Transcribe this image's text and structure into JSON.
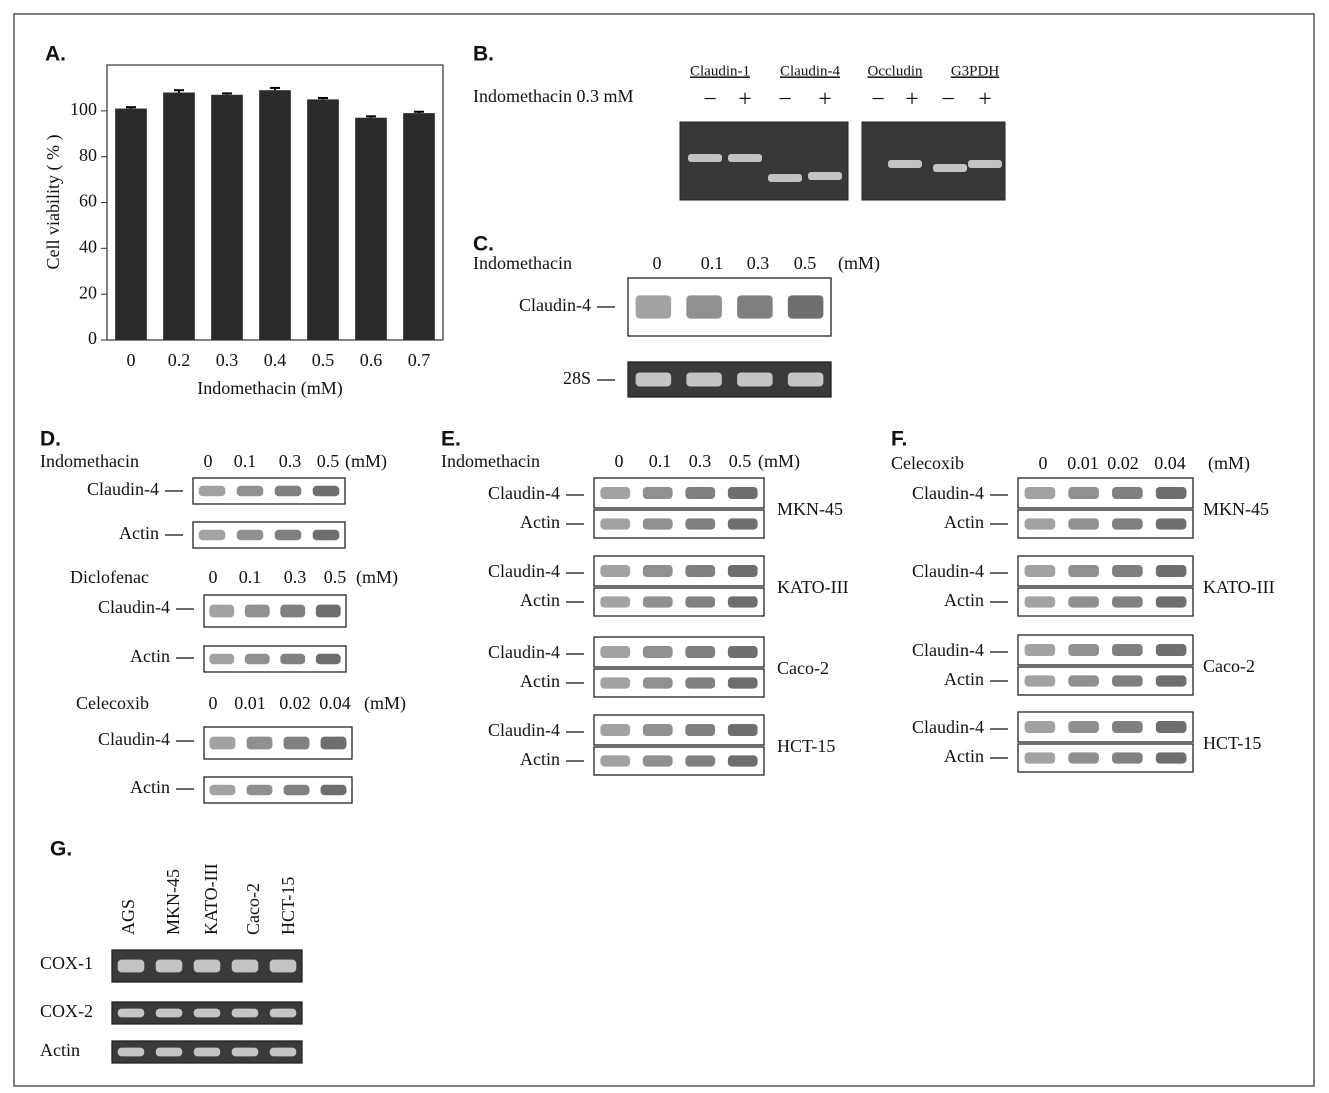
{
  "chart_data": {
    "type": "bar",
    "title": "A.",
    "x_label": "Indomethacin  (mM)",
    "y_label": "Cell viability ( % )",
    "categories": [
      "0",
      "0.2",
      "0.3",
      "0.4",
      "0.5",
      "0.6",
      "0.7"
    ],
    "values": [
      101,
      108,
      107,
      109,
      105,
      97,
      99
    ],
    "errors": [
      0.6,
      1,
      0.6,
      1,
      0.6,
      0.6,
      0.6
    ],
    "color": "#2b2b2b",
    "ylim": [
      0,
      120
    ],
    "yticks": [
      0,
      20,
      40,
      60,
      80,
      100
    ]
  },
  "panel_b": {
    "label": "B.",
    "treatment": "Indomethacin  0.3 mM",
    "genes": [
      "Claudin-1",
      "Claudin-4",
      "Occludin",
      "G3PDH"
    ],
    "signs": [
      "−",
      "+"
    ]
  },
  "panel_c": {
    "label": "C.",
    "treatment": "Indomethacin",
    "doses": [
      "0",
      "0.1",
      "0.3",
      "0.5"
    ],
    "unit": "(mM)",
    "rows": [
      "Claudin-4",
      "28S"
    ]
  },
  "panel_d": {
    "label": "D.",
    "blocks": [
      {
        "drug": "Indomethacin",
        "doses": [
          "0",
          "0.1",
          "0.3",
          "0.5"
        ],
        "unit": "(mM)",
        "rows": [
          "Claudin-4",
          "Actin"
        ]
      },
      {
        "drug": "Diclofenac",
        "doses": [
          "0",
          "0.1",
          "0.3",
          "0.5"
        ],
        "unit": "(mM)",
        "rows": [
          "Claudin-4",
          "Actin"
        ]
      },
      {
        "drug": "Celecoxib",
        "doses": [
          "0",
          "0.01",
          "0.02",
          "0.04"
        ],
        "unit": "(mM)",
        "rows": [
          "Claudin-4",
          "Actin"
        ]
      }
    ]
  },
  "panel_e": {
    "label": "E.",
    "drug": "Indomethacin",
    "doses": [
      "0",
      "0.1",
      "0.3",
      "0.5"
    ],
    "unit": "(mM)",
    "rows": [
      "Claudin-4",
      "Actin"
    ],
    "cell_lines": [
      "MKN-45",
      "KATO-III",
      "Caco-2",
      "HCT-15"
    ]
  },
  "panel_f": {
    "label": "F.",
    "drug": "Celecoxib",
    "doses": [
      "0",
      "0.01",
      "0.02",
      "0.04"
    ],
    "unit": "(mM)",
    "rows": [
      "Claudin-4",
      "Actin"
    ],
    "cell_lines": [
      "MKN-45",
      "KATO-III",
      "Caco-2",
      "HCT-15"
    ]
  },
  "panel_g": {
    "label": "G.",
    "cell_lines": [
      "AGS",
      "MKN-45",
      "KATO-III",
      "Caco-2",
      "HCT-15"
    ],
    "rows": [
      "COX-1",
      "COX-2",
      "Actin"
    ]
  }
}
